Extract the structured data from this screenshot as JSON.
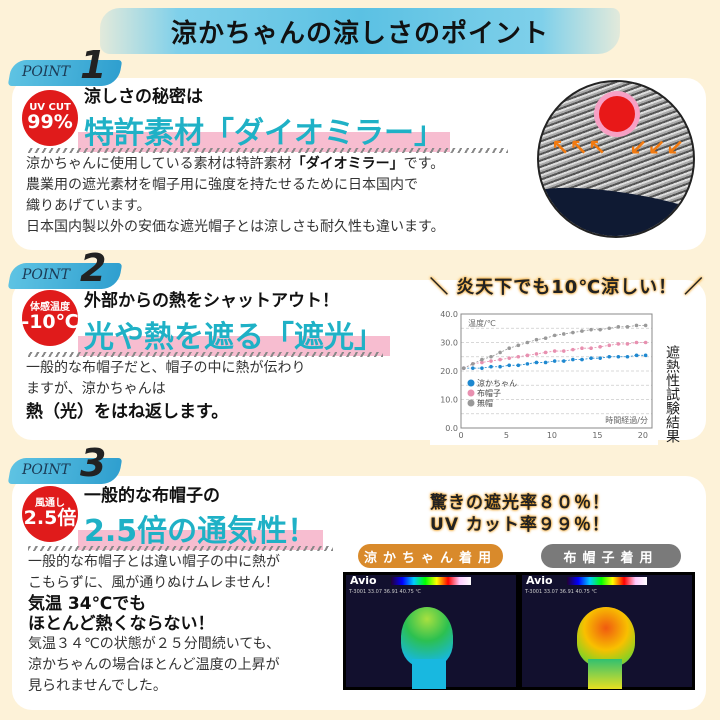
{
  "title": "涼かちゃんの涼しさのポイント",
  "point_label": "POINT",
  "sections": [
    {
      "number": "1",
      "badge_top": "UV CUT",
      "badge_main": "99%",
      "subtitle": "涼しさの秘密は",
      "headline": "特許素材「ダイオミラー」",
      "body": [
        {
          "pre": "涼かちゃんに使用している素材は特許素材",
          "bold": "「ダイオミラー」",
          "post": "です。"
        },
        "農業用の遮光素材を帽子用に強度を持たせるために日本国内で",
        "織りあげています。",
        "日本国内製以外の安価な遮光帽子とは涼しさも耐久性も違います。"
      ]
    },
    {
      "number": "2",
      "badge_top": "体感温度",
      "badge_main": "-10℃",
      "subtitle": "外部からの熱をシャットアウト！",
      "headline": "光や熱を遮る「遮光」",
      "body": [
        "一般的な布帽子だと、帽子の中に熱が伝わり",
        "ますが、涼かちゃんは"
      ],
      "emphasis": "熱（光）をはね返します。",
      "chart_heading": "炎天下でも10℃涼しい！",
      "chart_side_label": "遮熱性試験結果"
    },
    {
      "number": "3",
      "badge_top": "風通し",
      "badge_main": "2.5倍",
      "subtitle": "一般的な布帽子の",
      "headline": "2.5倍の通気性！",
      "body": [
        "一般的な布帽子とは違い帽子の中に熱が",
        "こもらずに、風が通りぬけムレません！"
      ],
      "emphasis": [
        "気温 34℃でも",
        "ほとんど熱くならない！"
      ],
      "body2": [
        "気温３４℃の状態が２５分間続いても、",
        "涼かちゃんの場合ほとんど温度の上昇が",
        "見られませんでした。"
      ],
      "kicker": [
        "驚きの遮光率８０％！",
        "UV カット率９９％！"
      ],
      "thermal": [
        {
          "label": "涼かちゃん着用",
          "color": "#d98a2b",
          "brand": "Avio",
          "scale": "T-3001  33.07  36.91  40.75 ℃",
          "hot": false
        },
        {
          "label": "布帽子着用",
          "color": "#7a7a7a",
          "brand": "Avio",
          "scale": "T-3001  33.07  36.91  40.75 ℃",
          "hot": true
        }
      ]
    }
  ],
  "chart_data": {
    "type": "line",
    "ylabel": "温度/℃",
    "xlabel": "時間経過/分",
    "xlim": [
      0,
      21
    ],
    "ylim": [
      0,
      40
    ],
    "xticks": [
      0,
      5,
      10,
      15,
      20
    ],
    "yticks": [
      "0.0",
      "10.0",
      "20.0",
      "30.0",
      "40.0"
    ],
    "grid": true,
    "legend": "bottom-left",
    "x": [
      0,
      1,
      2,
      3,
      4,
      5,
      6,
      7,
      8,
      9,
      10,
      11,
      12,
      13,
      14,
      15,
      16,
      17,
      18,
      19,
      20
    ],
    "series": [
      {
        "name": "涼かちゃん",
        "color": "#1e88d0",
        "values": [
          21,
          21,
          21,
          21.5,
          21.5,
          22,
          22,
          22.5,
          23,
          23,
          23.5,
          23.5,
          24,
          24,
          24.5,
          24.5,
          25,
          25,
          25,
          25.5,
          25.5
        ]
      },
      {
        "name": "布帽子",
        "color": "#e890b0",
        "values": [
          21,
          22.5,
          23,
          23.5,
          24,
          24.5,
          25,
          25.5,
          26,
          26.5,
          27,
          27,
          27.5,
          28,
          28,
          28.5,
          29,
          29.5,
          29.5,
          30,
          30
        ]
      },
      {
        "name": "無帽",
        "color": "#999999",
        "values": [
          21,
          22.5,
          24,
          25,
          26.5,
          28,
          29,
          30,
          31,
          31.5,
          32.5,
          33,
          33.5,
          34,
          34.5,
          34.5,
          35,
          35.5,
          35.5,
          36,
          36
        ]
      }
    ]
  }
}
